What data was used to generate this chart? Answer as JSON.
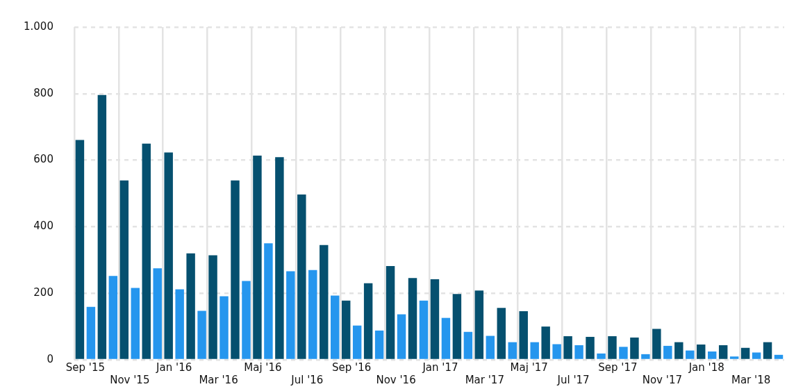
{
  "chart_data": {
    "type": "bar",
    "categories": [
      "Sep '15",
      null,
      "Nov '15",
      null,
      "Jan '16",
      null,
      "Mar '16",
      null,
      "Maj '16",
      null,
      "Jul '16",
      null,
      "Sep '16",
      null,
      "Nov '16",
      null,
      "Jan '17",
      null,
      "Mar '17",
      null,
      "Maj '17",
      null,
      "Jul '17",
      null,
      "Sep '17",
      null,
      "Nov '17",
      null,
      "Jan '18",
      null,
      "Mar '18",
      null
    ],
    "series": [
      {
        "color": "#05506f",
        "values": [
          661,
          796,
          539,
          650,
          623,
          320,
          314,
          539,
          614,
          609,
          497,
          345,
          178,
          230,
          282,
          246,
          242,
          198,
          208,
          156,
          146,
          100,
          71,
          69,
          71,
          67,
          93,
          53,
          46,
          44,
          36,
          53
        ]
      },
      {
        "color": "#2596ee",
        "values": [
          159,
          252,
          216,
          275,
          212,
          147,
          191,
          237,
          350,
          266,
          270,
          193,
          103,
          88,
          137,
          178,
          126,
          84,
          72,
          53,
          53,
          47,
          44,
          19,
          39,
          17,
          42,
          28,
          25,
          10,
          22,
          15
        ]
      }
    ],
    "ylim": [
      0,
      1000
    ],
    "yticks": [
      0,
      200,
      400,
      600,
      800,
      {
        "value": 1000,
        "label": "1.000"
      }
    ],
    "grid": true,
    "legend": false
  }
}
